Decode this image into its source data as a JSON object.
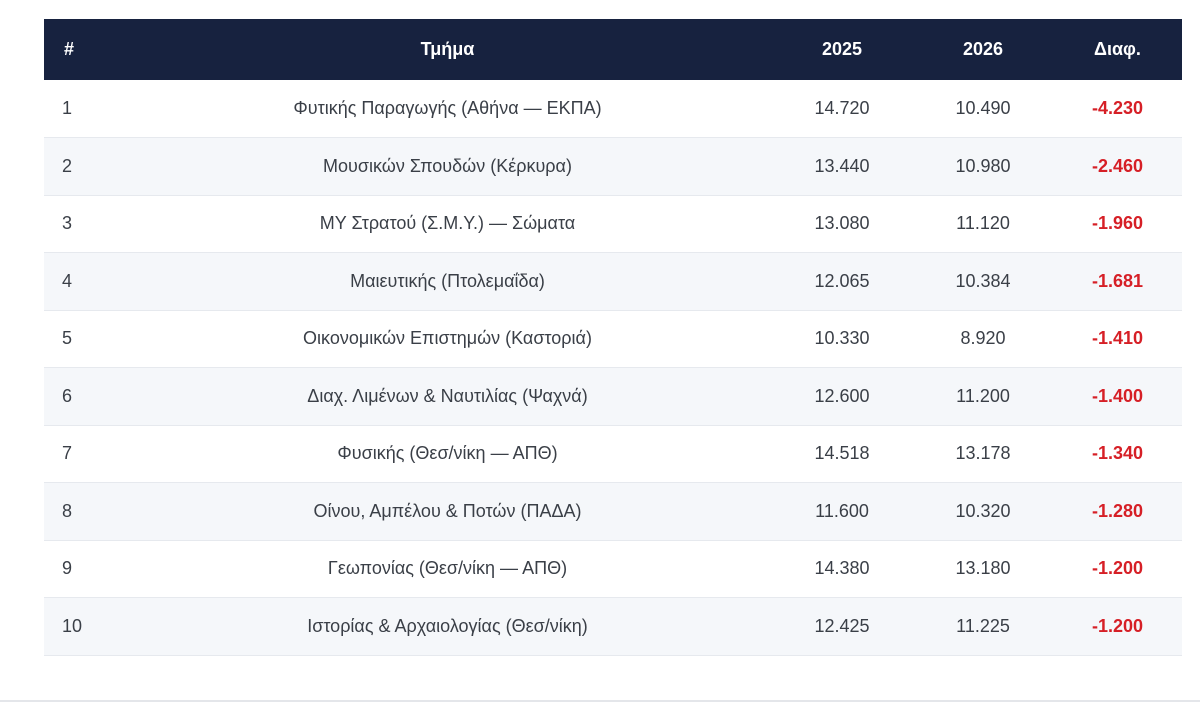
{
  "colors": {
    "header_bg": "#17223f",
    "header_text": "#ffffff",
    "diff_negative": "#d61f26",
    "row_alt": "#f5f7fa"
  },
  "table": {
    "headers": {
      "num": "#",
      "dept": "Τμήμα",
      "y2025": "2025",
      "y2026": "2026",
      "diff": "Διαφ."
    },
    "rows": [
      {
        "num": "1",
        "dept": "Φυτικής Παραγωγής (Αθήνα — ΕΚΠΑ)",
        "y2025": "14.720",
        "y2026": "10.490",
        "diff": "-4.230"
      },
      {
        "num": "2",
        "dept": "Μουσικών Σπουδών (Κέρκυρα)",
        "y2025": "13.440",
        "y2026": "10.980",
        "diff": "-2.460"
      },
      {
        "num": "3",
        "dept": "ΜΥ Στρατού (Σ.Μ.Υ.) — Σώματα",
        "y2025": "13.080",
        "y2026": "11.120",
        "diff": "-1.960"
      },
      {
        "num": "4",
        "dept": "Μαιευτικής (Πτολεμαΐδα)",
        "y2025": "12.065",
        "y2026": "10.384",
        "diff": "-1.681"
      },
      {
        "num": "5",
        "dept": "Οικονομικών Επιστημών (Καστοριά)",
        "y2025": "10.330",
        "y2026": "8.920",
        "diff": "-1.410"
      },
      {
        "num": "6",
        "dept": "Διαχ. Λιμένων & Ναυτιλίας (Ψαχνά)",
        "y2025": "12.600",
        "y2026": "11.200",
        "diff": "-1.400"
      },
      {
        "num": "7",
        "dept": "Φυσικής (Θεσ/νίκη — ΑΠΘ)",
        "y2025": "14.518",
        "y2026": "13.178",
        "diff": "-1.340"
      },
      {
        "num": "8",
        "dept": "Οίνου, Αμπέλου & Ποτών (ΠΑΔΑ)",
        "y2025": "11.600",
        "y2026": "10.320",
        "diff": "-1.280"
      },
      {
        "num": "9",
        "dept": "Γεωπονίας (Θεσ/νίκη — ΑΠΘ)",
        "y2025": "14.380",
        "y2026": "13.180",
        "diff": "-1.200"
      },
      {
        "num": "10",
        "dept": "Ιστορίας & Αρχαιολογίας (Θεσ/νίκη)",
        "y2025": "12.425",
        "y2026": "11.225",
        "diff": "-1.200"
      }
    ]
  }
}
